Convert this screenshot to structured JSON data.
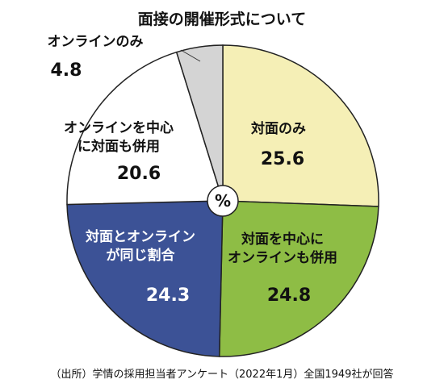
{
  "chart_data": {
    "type": "pie",
    "title": "面接の開催形式について",
    "unit": "%",
    "note": "（出所）学情の採用担当者アンケート（2022年1月）全国1949社が回答",
    "slices": [
      {
        "label_lines": [
          "対面のみ"
        ],
        "value": 25.6,
        "color": "#f5efb6",
        "text_color": "#111111"
      },
      {
        "label_lines": [
          "対面を中心に",
          "オンラインも併用"
        ],
        "value": 24.8,
        "color": "#8ebd45",
        "text_color": "#111111"
      },
      {
        "label_lines": [
          "対面とオンライン",
          "が同じ割合"
        ],
        "value": 24.3,
        "color": "#3c5296",
        "text_color": "#ffffff"
      },
      {
        "label_lines": [
          "オンラインを中心",
          "に対面も併用"
        ],
        "value": 20.6,
        "color": "#ffffff",
        "text_color": "#111111"
      },
      {
        "label_lines": [
          "オンラインのみ"
        ],
        "value": 4.8,
        "color": "#d4d4d4",
        "text_color": "#111111"
      }
    ]
  }
}
